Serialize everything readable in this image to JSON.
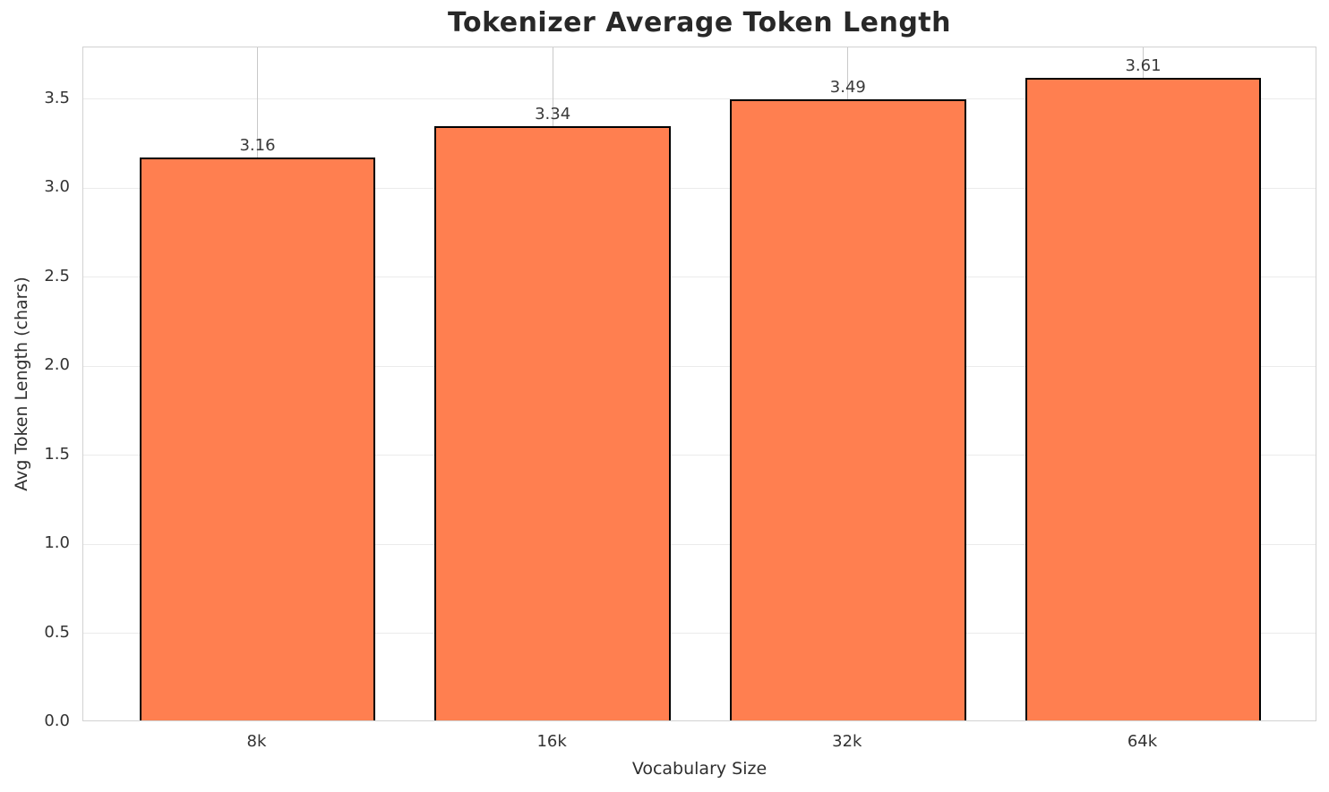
{
  "chart_data": {
    "type": "bar",
    "title": "Tokenizer Average Token Length",
    "xlabel": "Vocabulary Size",
    "ylabel": "Avg Token Length (chars)",
    "categories": [
      "8k",
      "16k",
      "32k",
      "64k"
    ],
    "values": [
      3.16,
      3.34,
      3.49,
      3.61
    ],
    "bar_labels": [
      "3.16",
      "3.34",
      "3.49",
      "3.61"
    ],
    "ylim": [
      0,
      3.79
    ],
    "yticks": [
      0,
      0.5,
      1,
      1.5,
      2,
      2.5,
      3,
      3.5
    ],
    "ytick_labels": [
      "0.0",
      "0.5",
      "1.0",
      "1.5",
      "2.0",
      "2.5",
      "3.0",
      "3.5"
    ],
    "bar_width_fraction": 0.8,
    "x_margin": 0.05,
    "grid": true,
    "legend": null,
    "colors": {
      "bar_fill": "#FF7F50",
      "bar_edge": "#000000",
      "grid_horizontal": "#ebebeb",
      "grid_vertical": "#c9c9c9",
      "spine": "#d2d2d2",
      "title_text": "#282828",
      "tick_text": "#333333",
      "axis_label_text": "#2e2e2e",
      "value_label_text": "#3a3a3a",
      "background": "#ffffff"
    }
  }
}
